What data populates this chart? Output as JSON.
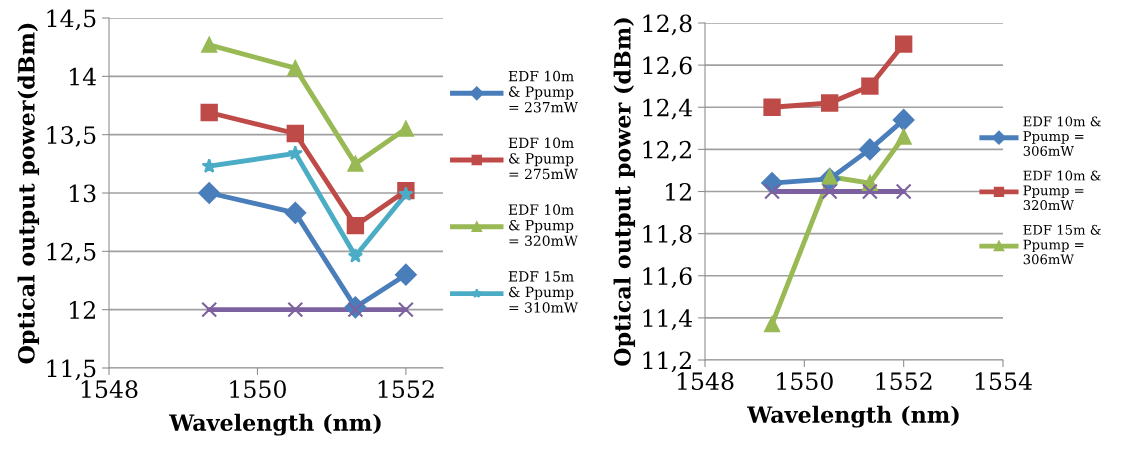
{
  "chart_data": [
    {
      "type": "line",
      "xlabel": "Wavelength (nm)",
      "ylabel": "Optical output power(dBm)",
      "xlim": [
        1548,
        1552.5
      ],
      "xticks": [
        1548,
        1550,
        1552
      ],
      "ylim": [
        11.5,
        14.5
      ],
      "yticks": [
        {
          "value": 11.5,
          "label": "11,5"
        },
        12,
        {
          "value": 12.5,
          "label": "12,5"
        },
        13,
        {
          "value": 13.5,
          "label": "13,5"
        },
        14,
        {
          "value": 14.5,
          "label": "14,5"
        }
      ],
      "grid": "y",
      "legend": "right",
      "x": [
        1549.35,
        1550.51,
        1551.32,
        1552.0
      ],
      "series": [
        {
          "name": "EDF 10m\n& Ppump\n= 237mW",
          "color": "#4a7ebb",
          "marker": "diamond",
          "values": [
            13.0,
            12.83,
            12.02,
            12.3
          ]
        },
        {
          "name": "EDF 10m\n& Ppump\n= 275mW",
          "color": "#be4b48",
          "marker": "square",
          "values": [
            13.69,
            13.51,
            12.72,
            13.02
          ]
        },
        {
          "name": "EDF 10m\n& Ppump\n= 320mW",
          "color": "#98b954",
          "marker": "triangle",
          "values": [
            14.27,
            14.07,
            13.25,
            13.55
          ]
        },
        {
          "name": "EDF 15m\n& Ppump\n= 310mW",
          "color": "#4bacc6",
          "marker": "star",
          "values": [
            13.23,
            13.34,
            12.46,
            12.99
          ]
        },
        {
          "color": "#7d60a0",
          "marker": "cross",
          "values": [
            12,
            12,
            12,
            12
          ]
        }
      ]
    },
    {
      "type": "line",
      "xlabel": "Wavelength (nm)",
      "ylabel": "Optical output power (dBm)",
      "xlim": [
        1548,
        1554
      ],
      "xticks": [
        1548,
        1550,
        1552,
        1554
      ],
      "ylim": [
        11.2,
        12.8
      ],
      "yticks": [
        {
          "value": 11.2,
          "label": "11,2"
        },
        {
          "value": 11.4,
          "label": "11,4"
        },
        {
          "value": 11.6,
          "label": "11,6"
        },
        {
          "value": 11.8,
          "label": "11,8"
        },
        12,
        {
          "value": 12.2,
          "label": "12,2"
        },
        {
          "value": 12.4,
          "label": "12,4"
        },
        {
          "value": 12.6,
          "label": "12,6"
        },
        {
          "value": 12.8,
          "label": "12,8"
        }
      ],
      "grid": "y",
      "legend": "right",
      "x": [
        1549.35,
        1550.51,
        1551.32,
        1552.0
      ],
      "series": [
        {
          "name": "EDF 10m &\nPpump =\n306mW",
          "color": "#4a7ebb",
          "marker": "diamond",
          "values": [
            12.04,
            12.06,
            12.2,
            12.34
          ]
        },
        {
          "name": "EDF 10m &\nPpump =\n320mW",
          "color": "#be4b48",
          "marker": "square",
          "values": [
            12.4,
            12.42,
            12.5,
            12.7
          ]
        },
        {
          "name": "EDF 15m &\nPpump =\n306mW",
          "color": "#98b954",
          "marker": "triangle",
          "values": [
            11.37,
            12.07,
            12.04,
            12.26
          ]
        },
        {
          "color": "#7d60a0",
          "marker": "cross",
          "values": [
            12,
            12,
            12,
            12
          ]
        }
      ]
    }
  ]
}
